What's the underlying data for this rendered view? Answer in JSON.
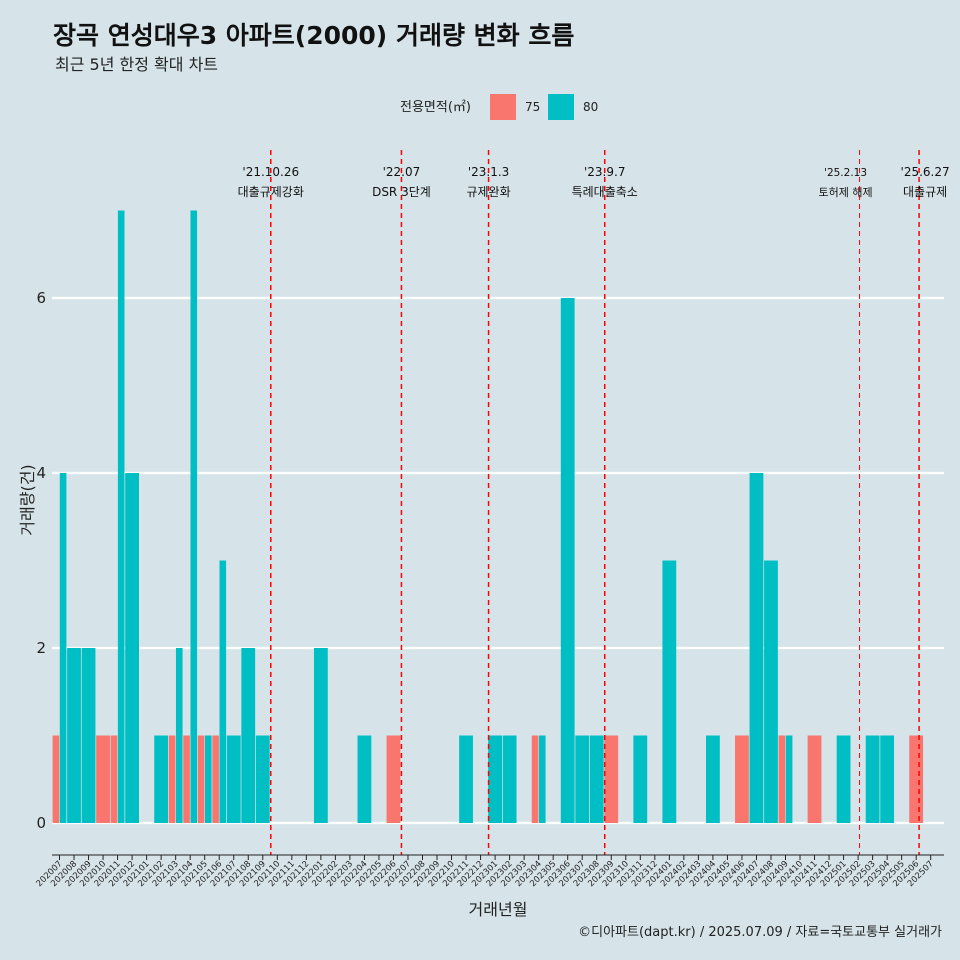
{
  "chart_data": {
    "type": "bar",
    "title": "장곡 연성대우3 아파트(2000) 거래량 변화 흐름",
    "subtitle": "최근 5년 한정 확대 차트",
    "xlabel": "거래년월",
    "ylabel": "거래량(건)",
    "ylim": [
      0,
      7
    ],
    "yticks": [
      0,
      2,
      4,
      6
    ],
    "legend": {
      "title": "전용면적(㎡)",
      "position": "top",
      "items": [
        {
          "name": "75",
          "color": "#f8766d"
        },
        {
          "name": "80",
          "color": "#00bfc4"
        }
      ]
    },
    "categories": [
      "202007",
      "202008",
      "202009",
      "202010",
      "202011",
      "202012",
      "202101",
      "202102",
      "202103",
      "202104",
      "202105",
      "202106",
      "202107",
      "202108",
      "202109",
      "202110",
      "202111",
      "202112",
      "202201",
      "202202",
      "202203",
      "202204",
      "202205",
      "202206",
      "202207",
      "202208",
      "202209",
      "202210",
      "202211",
      "202212",
      "202301",
      "202302",
      "202303",
      "202304",
      "202305",
      "202306",
      "202307",
      "202308",
      "202309",
      "202310",
      "202311",
      "202312",
      "202401",
      "202402",
      "202403",
      "202404",
      "202405",
      "202406",
      "202407",
      "202408",
      "202409",
      "202410",
      "202411",
      "202412",
      "202501",
      "202502",
      "202503",
      "202504",
      "202505",
      "202506",
      "202507"
    ],
    "series": [
      {
        "name": "75",
        "color": "#f8766d",
        "values": [
          1,
          0,
          0,
          1,
          1,
          0,
          0,
          0,
          1,
          1,
          1,
          1,
          0,
          0,
          0,
          0,
          0,
          0,
          0,
          0,
          0,
          0,
          0,
          1,
          0,
          0,
          0,
          0,
          0,
          0,
          0,
          0,
          0,
          1,
          0,
          0,
          0,
          0,
          1,
          0,
          0,
          0,
          0,
          0,
          0,
          0,
          0,
          1,
          0,
          0,
          1,
          0,
          1,
          0,
          0,
          0,
          0,
          0,
          0,
          1,
          0
        ]
      },
      {
        "name": "80",
        "color": "#00bfc4",
        "values": [
          4,
          2,
          2,
          0,
          7,
          4,
          0,
          1,
          2,
          7,
          1,
          3,
          1,
          2,
          1,
          0,
          0,
          0,
          2,
          0,
          0,
          1,
          0,
          0,
          0,
          0,
          0,
          0,
          1,
          0,
          1,
          1,
          0,
          1,
          0,
          6,
          1,
          1,
          0,
          0,
          1,
          0,
          3,
          0,
          0,
          1,
          0,
          0,
          4,
          3,
          1,
          0,
          0,
          0,
          1,
          0,
          1,
          1,
          0,
          0,
          0
        ]
      }
    ],
    "events": [
      {
        "date": "'21.10.26",
        "label": "대출규제강화",
        "at": "202110"
      },
      {
        "date": "'22.07",
        "label": "DSR 3단계",
        "at": "202207"
      },
      {
        "date": "'23.1.3",
        "label": "규제완화",
        "at": "202301"
      },
      {
        "date": "'23.9.7",
        "label": "특례대출축소",
        "at": "202309"
      },
      {
        "date": "'25.2.13",
        "label": "토허제 해제",
        "at": "202502"
      },
      {
        "date": "'25.6.27",
        "label": "대출규제",
        "at": "202506"
      }
    ],
    "caption": "©디아파트(dapt.kr) / 2025.07.09 / 자료=국토교통부 실거래가"
  }
}
